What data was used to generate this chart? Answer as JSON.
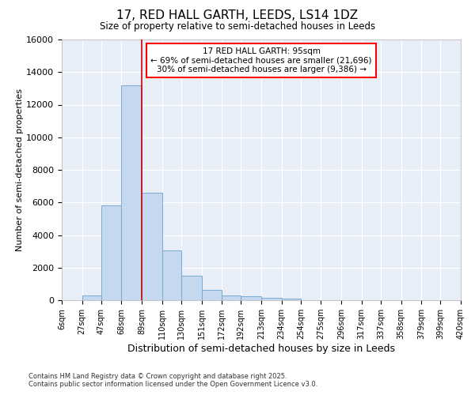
{
  "title_line1": "17, RED HALL GARTH, LEEDS, LS14 1DZ",
  "title_line2": "Size of property relative to semi-detached houses in Leeds",
  "xlabel": "Distribution of semi-detached houses by size in Leeds",
  "ylabel": "Number of semi-detached properties",
  "bar_color": "#c5d8f0",
  "bar_edge_color": "#7aaad4",
  "background_color": "#e8eef8",
  "grid_color": "#ffffff",
  "vline_color": "#cc0000",
  "annotation_title": "17 RED HALL GARTH: 95sqm",
  "annotation_line2": "← 69% of semi-detached houses are smaller (21,696)",
  "annotation_line3": "30% of semi-detached houses are larger (9,386) →",
  "footer_line1": "Contains HM Land Registry data © Crown copyright and database right 2025.",
  "footer_line2": "Contains public sector information licensed under the Open Government Licence v3.0.",
  "bin_edges": [
    6,
    27,
    47,
    68,
    89,
    110,
    130,
    151,
    172,
    192,
    213,
    234,
    254,
    275,
    296,
    317,
    337,
    358,
    379,
    399,
    420
  ],
  "bin_labels": [
    "6sqm",
    "27sqm",
    "47sqm",
    "68sqm",
    "89sqm",
    "110sqm",
    "130sqm",
    "151sqm",
    "172sqm",
    "192sqm",
    "213sqm",
    "234sqm",
    "254sqm",
    "275sqm",
    "296sqm",
    "317sqm",
    "337sqm",
    "358sqm",
    "379sqm",
    "399sqm",
    "420sqm"
  ],
  "bar_heights": [
    0,
    310,
    5800,
    13200,
    6600,
    3050,
    1520,
    620,
    310,
    260,
    155,
    105,
    0,
    0,
    0,
    0,
    0,
    0,
    0,
    0
  ],
  "ylim": [
    0,
    16000
  ],
  "yticks": [
    0,
    2000,
    4000,
    6000,
    8000,
    10000,
    12000,
    14000,
    16000
  ],
  "vline_x": 89,
  "figwidth": 6.0,
  "figheight": 5.0,
  "dpi": 100
}
